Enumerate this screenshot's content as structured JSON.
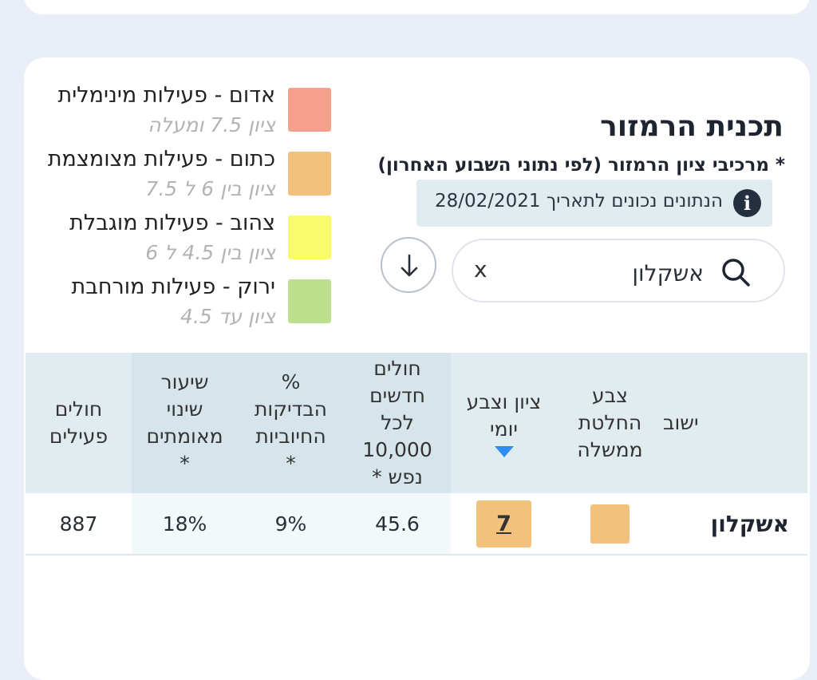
{
  "legend": [
    {
      "title": "אדום - פעילות מינימלית",
      "sub": "ציון 7.5 ומעלה",
      "color": "#f7a08c"
    },
    {
      "title": "כתום - פעילות מצומצמת",
      "sub": "ציון בין 6 ל 7.5",
      "color": "#f2c27c"
    },
    {
      "title": "צהוב - פעילות מוגבלת",
      "sub": "ציון בין 4.5 ל 6",
      "color": "#fafb6c"
    },
    {
      "title": "ירוק - פעילות מורחבת",
      "sub": "ציון עד 4.5",
      "color": "#bde08f"
    }
  ],
  "title": "תכנית הרמזור",
  "subtitle": "* מרכיבי ציון הרמזור (לפי נתוני השבוע האחרון)",
  "info": {
    "icon": "i",
    "text": "הנתונים נכונים לתאריך 28/02/2021"
  },
  "search": {
    "value": "אשקלון",
    "clear": "x"
  },
  "table": {
    "headers": {
      "city": "ישוב",
      "gov_color": "צבע\nהחלטת\nממשלה",
      "daily_score": "ציון וצבע\nיומי",
      "new_cases": "חולים\nחדשים\nלכל\n10,000\nנפש *",
      "positive_pct": "%\nהבדיקות\nהחיוביות\n*",
      "change_rate": "שיעור\nשינוי\nמאומתים\n*",
      "active": "חולים\nפעילים"
    },
    "row": {
      "city": "אשקלון",
      "gov_color": "#f2c27c",
      "daily_score": "7",
      "new_cases": "45.6",
      "positive_pct": "9%",
      "change_rate": "18%",
      "active": "887"
    }
  }
}
